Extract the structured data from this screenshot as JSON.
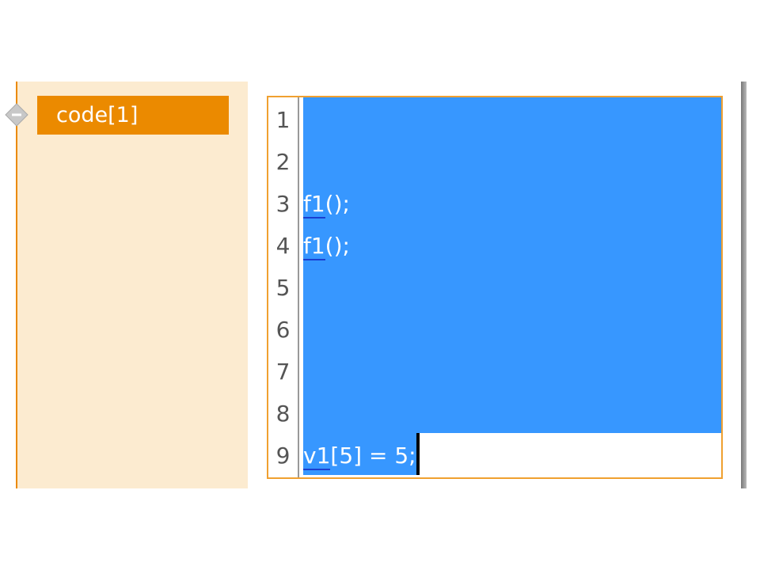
{
  "tree": {
    "node_label": "code[1]",
    "node_color": "#eb8a00",
    "collapse_icon": "minus-diamond-icon"
  },
  "editor": {
    "line_numbers": [
      "1",
      "2",
      "3",
      "4",
      "5",
      "6",
      "7",
      "8",
      "9"
    ],
    "lines": [
      {
        "ident": "",
        "rest": ""
      },
      {
        "ident": "",
        "rest": ""
      },
      {
        "ident": "f1",
        "rest": "();"
      },
      {
        "ident": "f1",
        "rest": "();"
      },
      {
        "ident": "",
        "rest": ""
      },
      {
        "ident": "",
        "rest": ""
      },
      {
        "ident": "",
        "rest": ""
      },
      {
        "ident": "",
        "rest": ""
      },
      {
        "ident": "v1",
        "rest": "[5] = 5;"
      }
    ],
    "selection_color": "#3797ff"
  }
}
